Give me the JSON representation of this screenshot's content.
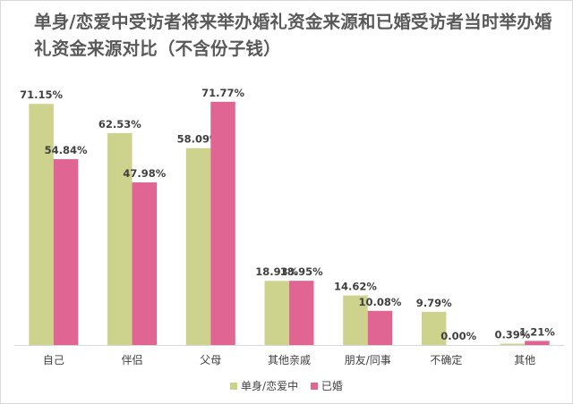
{
  "chart_data": {
    "type": "bar",
    "title": "单身/恋爱中受访者将来举办婚礼资金来源和已婚受访者当时举办婚礼资金来源对比（不含份子钱）",
    "categories": [
      "自己",
      "伴侣",
      "父母",
      "其他亲戚",
      "朋友/同事",
      "不确定",
      "其他"
    ],
    "series": [
      {
        "name": "单身/恋爱中",
        "color": "#cdd28c",
        "values": [
          71.15,
          62.53,
          58.09,
          18.93,
          14.62,
          9.79,
          0.39
        ],
        "labels": [
          "71.15%",
          "62.53%",
          "58.09%",
          "18.93%",
          "14.62%",
          "9.79%",
          "0.39%"
        ]
      },
      {
        "name": "已婚",
        "color": "#e06592",
        "values": [
          54.84,
          47.98,
          71.77,
          18.95,
          10.08,
          0.0,
          1.21
        ],
        "labels": [
          "54.84%",
          "47.98%",
          "71.77%",
          "18.95%",
          "10.08%",
          "0.00%",
          "1.21%"
        ]
      }
    ],
    "xlabel": "",
    "ylabel": "",
    "ylim": [
      0,
      72
    ],
    "grid": false,
    "legend": "bottom-center"
  }
}
